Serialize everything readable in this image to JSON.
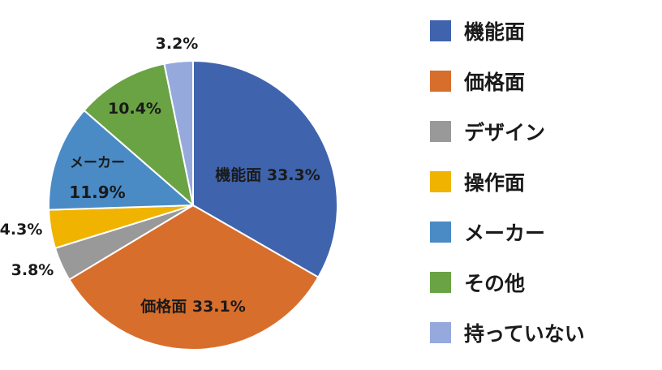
{
  "chart_data": {
    "type": "pie",
    "title": "",
    "start_angle_deg": 0,
    "direction": "clockwise",
    "slices": [
      {
        "label": "機能面",
        "value": 33.3,
        "color": "#3f64ad",
        "data_label": "機能面 33.3%"
      },
      {
        "label": "価格面",
        "value": 33.1,
        "color": "#d86e2c",
        "data_label": "価格面 33.1%"
      },
      {
        "label": "デザイン",
        "value": 3.8,
        "color": "#999999",
        "data_label": "3.8%"
      },
      {
        "label": "操作面",
        "value": 4.3,
        "color": "#f0b400",
        "data_label": "4.3%"
      },
      {
        "label": "メーカー",
        "value": 11.9,
        "color": "#4a8bc6",
        "data_label": "メーカー\n11.9%"
      },
      {
        "label": "その他",
        "value": 10.4,
        "color": "#6aa343",
        "data_label": "10.4%"
      },
      {
        "label": "持っていない",
        "value": 3.2,
        "color": "#95a9dc",
        "data_label": "3.2%"
      }
    ],
    "legend_position": "right"
  }
}
